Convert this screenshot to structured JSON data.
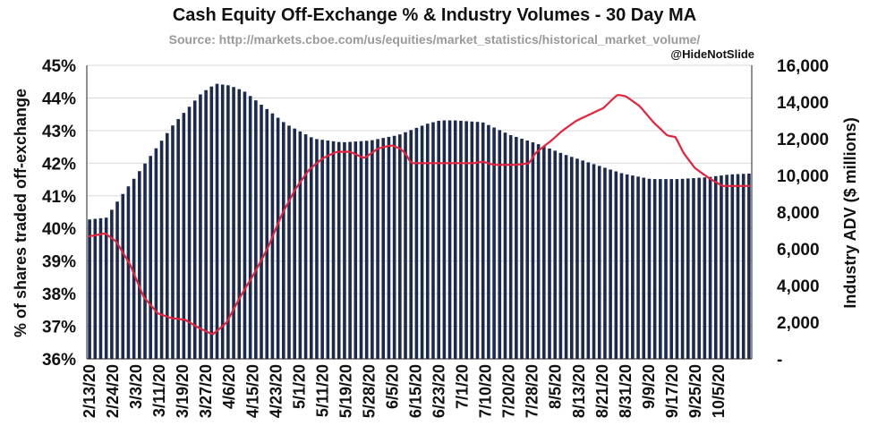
{
  "chart_data": {
    "type": "bar+line",
    "title": "Cash Equity Off-Exchange % & Industry Volumes - 30 Day MA",
    "subtitle": "Source: http://markets.cboe.com/us/equities/market_statistics/historical_market_volume/",
    "watermark": "@HideNotSlide",
    "ylabel_left": "% of shares traded off-exchange",
    "ylabel_right": "Industry ADV  ($ millions)",
    "ylim_left": [
      36,
      45
    ],
    "ylim_right": [
      0,
      16000
    ],
    "left_ticks": [
      "36%",
      "37%",
      "38%",
      "39%",
      "40%",
      "41%",
      "42%",
      "43%",
      "44%",
      "45%"
    ],
    "right_ticks": [
      "-",
      "2,000",
      "4,000",
      "6,000",
      "8,000",
      "10,000",
      "12,000",
      "14,000",
      "16,000"
    ],
    "x_tick_labels": [
      "2/13/20",
      "2/24/20",
      "3/3/20",
      "3/11/20",
      "3/19/20",
      "3/27/20",
      "4/6/20",
      "4/15/20",
      "4/23/20",
      "5/1/20",
      "5/11/20",
      "5/19/20",
      "5/28/20",
      "6/5/20",
      "6/15/20",
      "6/23/20",
      "7/1/20",
      "7/10/20",
      "7/20/20",
      "7/28/20",
      "8/5/20",
      "8/13/20",
      "8/21/20",
      "8/31/20",
      "9/9/20",
      "9/17/20",
      "9/25/20",
      "10/5/20"
    ],
    "series": [
      {
        "name": "Industry ADV ($ millions)",
        "type": "bar",
        "axis": "right",
        "color": "#1b2a4e",
        "keyframes": [
          [
            0,
            7600
          ],
          [
            6,
            7700
          ],
          [
            10,
            8600
          ],
          [
            20,
            10700
          ],
          [
            30,
            12800
          ],
          [
            40,
            14500
          ],
          [
            45,
            15000
          ],
          [
            50,
            14900
          ],
          [
            55,
            14600
          ],
          [
            60,
            14000
          ],
          [
            70,
            12800
          ],
          [
            80,
            12000
          ],
          [
            90,
            11800
          ],
          [
            100,
            11900
          ],
          [
            110,
            12200
          ],
          [
            120,
            12800
          ],
          [
            125,
            13000
          ],
          [
            130,
            13000
          ],
          [
            140,
            12900
          ],
          [
            150,
            12200
          ],
          [
            160,
            11700
          ],
          [
            170,
            11100
          ],
          [
            180,
            10600
          ],
          [
            190,
            10100
          ],
          [
            200,
            9800
          ],
          [
            210,
            9800
          ],
          [
            220,
            9900
          ],
          [
            228,
            10050
          ],
          [
            235,
            10100
          ]
        ]
      },
      {
        "name": "Off-exchange %",
        "type": "line",
        "axis": "left",
        "color": "#e8223a",
        "keyframes": [
          [
            0,
            39.75
          ],
          [
            6,
            39.85
          ],
          [
            10,
            39.6
          ],
          [
            15,
            38.9
          ],
          [
            20,
            37.9
          ],
          [
            25,
            37.4
          ],
          [
            30,
            37.25
          ],
          [
            35,
            37.2
          ],
          [
            40,
            36.95
          ],
          [
            45,
            36.75
          ],
          [
            50,
            37.1
          ],
          [
            55,
            37.9
          ],
          [
            60,
            38.6
          ],
          [
            65,
            39.4
          ],
          [
            70,
            40.4
          ],
          [
            75,
            41.2
          ],
          [
            80,
            41.8
          ],
          [
            85,
            42.15
          ],
          [
            90,
            42.35
          ],
          [
            95,
            42.35
          ],
          [
            100,
            42.15
          ],
          [
            105,
            42.45
          ],
          [
            110,
            42.55
          ],
          [
            113,
            42.45
          ],
          [
            115,
            42.3
          ],
          [
            117,
            42.0
          ],
          [
            125,
            42.0
          ],
          [
            135,
            42.0
          ],
          [
            140,
            42.0
          ],
          [
            143,
            42.05
          ],
          [
            147,
            41.95
          ],
          [
            150,
            41.95
          ],
          [
            155,
            41.95
          ],
          [
            160,
            42.0
          ],
          [
            162,
            42.3
          ],
          [
            165,
            42.5
          ],
          [
            168,
            42.7
          ],
          [
            172,
            43.0
          ],
          [
            177,
            43.3
          ],
          [
            182,
            43.5
          ],
          [
            187,
            43.7
          ],
          [
            190,
            43.95
          ],
          [
            192,
            44.1
          ],
          [
            195,
            44.05
          ],
          [
            200,
            43.75
          ],
          [
            205,
            43.25
          ],
          [
            210,
            42.85
          ],
          [
            213,
            42.8
          ],
          [
            216,
            42.3
          ],
          [
            220,
            41.85
          ],
          [
            225,
            41.55
          ],
          [
            230,
            41.3
          ],
          [
            235,
            41.3
          ],
          [
            240,
            41.3
          ]
        ]
      }
    ]
  }
}
